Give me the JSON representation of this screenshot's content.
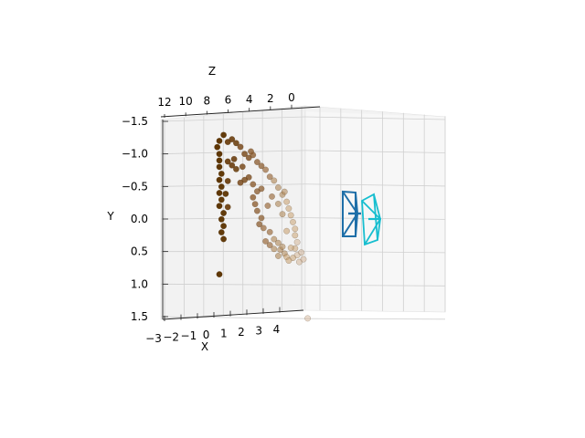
{
  "chart_data": {
    "type": "scatter",
    "projection": "3d",
    "title": "",
    "xlabel": "X",
    "ylabel": "Y",
    "zlabel": "Z",
    "x_ticks": [
      -3,
      -2,
      -1,
      0,
      1,
      2,
      3,
      4
    ],
    "y_ticks": [
      -1.5,
      -1.0,
      -0.5,
      0.0,
      0.5,
      1.0,
      1.5
    ],
    "z_ticks": [
      12,
      10,
      8,
      6,
      4,
      2,
      0
    ],
    "xlim": [
      -3,
      4
    ],
    "ylim": [
      -1.5,
      1.5
    ],
    "zlim": [
      0,
      12
    ],
    "y_inverted": true,
    "grid": true,
    "legend": "none",
    "point_colors": [
      "#5c3300",
      "#6a3d0d",
      "#7a4a1c",
      "#8a5a2c",
      "#9a6a3c",
      "#b08a5c",
      "#c8a070",
      "#d0b090"
    ],
    "points_cluster": [
      [
        -1.3,
        -1.2
      ],
      [
        -1.2,
        -1.3
      ],
      [
        -1.1,
        -1.2
      ],
      [
        -1.0,
        -1.25
      ],
      [
        -0.9,
        -1.2
      ],
      [
        -0.8,
        -1.15
      ],
      [
        -0.7,
        -1.05
      ],
      [
        -0.6,
        -1.0
      ],
      [
        -0.5,
        -1.05
      ],
      [
        -0.4,
        -0.95
      ],
      [
        -1.35,
        -1.1
      ],
      [
        -1.3,
        -1.0
      ],
      [
        -1.3,
        -0.9
      ],
      [
        -1.3,
        -0.8
      ],
      [
        -1.25,
        -0.7
      ],
      [
        -1.3,
        -0.6
      ],
      [
        -1.25,
        -0.5
      ],
      [
        -1.3,
        -0.4
      ],
      [
        -1.25,
        -0.3
      ],
      [
        -1.3,
        -0.2
      ],
      [
        -1.2,
        -0.1
      ],
      [
        -1.25,
        0.0
      ],
      [
        -1.2,
        0.1
      ],
      [
        -1.25,
        0.2
      ],
      [
        -1.2,
        0.3
      ],
      [
        -1.1,
        -0.9
      ],
      [
        -1.0,
        -0.85
      ],
      [
        -1.1,
        -0.6
      ],
      [
        -1.15,
        -0.4
      ],
      [
        -1.1,
        -0.2
      ],
      [
        -0.3,
        -0.9
      ],
      [
        -0.2,
        -0.85
      ],
      [
        -0.1,
        -0.75
      ],
      [
        0.0,
        -0.7
      ],
      [
        0.1,
        -0.6
      ],
      [
        0.2,
        -0.5
      ],
      [
        0.3,
        -0.4
      ],
      [
        0.35,
        -0.3
      ],
      [
        0.4,
        -0.2
      ],
      [
        0.45,
        -0.1
      ],
      [
        0.5,
        0.0
      ],
      [
        0.5,
        0.1
      ],
      [
        0.55,
        0.2
      ],
      [
        0.5,
        0.3
      ],
      [
        0.55,
        0.4
      ],
      [
        0.45,
        0.45
      ],
      [
        0.6,
        0.5
      ],
      [
        -0.5,
        -0.6
      ],
      [
        -0.4,
        -0.5
      ],
      [
        -0.3,
        -0.55
      ],
      [
        -0.5,
        -0.4
      ],
      [
        -0.45,
        -0.3
      ],
      [
        -0.4,
        -0.2
      ],
      [
        -0.3,
        -0.1
      ],
      [
        -0.35,
        0.0
      ],
      [
        -0.25,
        0.05
      ],
      [
        -0.6,
        -0.7
      ],
      [
        -0.7,
        -0.65
      ],
      [
        -0.8,
        -0.6
      ],
      [
        -0.9,
        -0.8
      ],
      [
        -0.1,
        0.1
      ],
      [
        0.0,
        0.2
      ],
      [
        0.1,
        0.25
      ],
      [
        0.15,
        0.35
      ],
      [
        0.2,
        0.3
      ],
      [
        0.25,
        0.4
      ],
      [
        0.3,
        0.45
      ],
      [
        0.35,
        0.5
      ],
      [
        0.1,
        0.45
      ],
      [
        0.0,
        0.35
      ],
      [
        -0.2,
        0.25
      ],
      [
        -0.1,
        0.3
      ],
      [
        0.4,
        0.3
      ],
      [
        0.65,
        0.35
      ],
      [
        0.7,
        0.45
      ],
      [
        0.2,
        -0.2
      ],
      [
        0.1,
        -0.35
      ],
      [
        -0.05,
        -0.45
      ],
      [
        -0.15,
        -0.3
      ],
      [
        0.3,
        0.05
      ],
      [
        -1.3,
        0.85
      ],
      [
        0.8,
        1.35
      ],
      [
        0.25,
        -0.55
      ],
      [
        -0.75,
        -0.85
      ],
      [
        -0.55,
        -1.1
      ],
      [
        -0.95,
        -0.95
      ]
    ]
  },
  "camera_a_color": "#1f6fa8",
  "camera_b_color": "#17becf"
}
